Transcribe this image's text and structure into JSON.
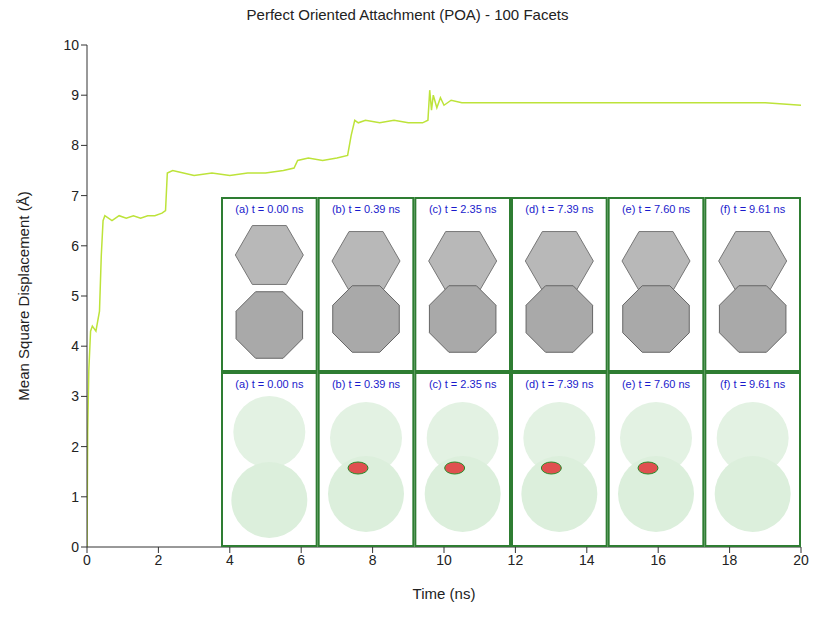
{
  "chart_data": {
    "type": "line",
    "title": "Perfect Oriented Attachment (POA) - 100 Facets",
    "x_label": "Time (ns)",
    "y_label": "Mean Square Displacement (Å)",
    "x": [
      0,
      0.02,
      0.05,
      0.1,
      0.15,
      0.25,
      0.3,
      0.35,
      0.4,
      0.45,
      0.5,
      0.7,
      0.9,
      1.1,
      1.3,
      1.5,
      1.7,
      1.9,
      2.1,
      2.2,
      2.25,
      2.4,
      2.7,
      3.0,
      3.5,
      4.0,
      4.5,
      5.0,
      5.5,
      5.8,
      5.9,
      6.2,
      6.6,
      7.0,
      7.3,
      7.4,
      7.5,
      7.6,
      7.8,
      8.2,
      8.6,
      9.0,
      9.4,
      9.55,
      9.6,
      9.65,
      9.7,
      9.8,
      9.9,
      10.0,
      10.2,
      10.5,
      11,
      12,
      13,
      14,
      15,
      16,
      17,
      18,
      19,
      20
    ],
    "values": [
      0,
      2.3,
      3.5,
      4.3,
      4.4,
      4.3,
      4.5,
      4.7,
      5.8,
      6.5,
      6.6,
      6.5,
      6.6,
      6.55,
      6.6,
      6.55,
      6.6,
      6.6,
      6.65,
      6.7,
      7.45,
      7.5,
      7.45,
      7.4,
      7.45,
      7.4,
      7.45,
      7.45,
      7.5,
      7.55,
      7.7,
      7.75,
      7.7,
      7.75,
      7.8,
      8.2,
      8.5,
      8.45,
      8.5,
      8.45,
      8.5,
      8.45,
      8.45,
      8.5,
      9.1,
      8.7,
      9.0,
      8.75,
      8.95,
      8.8,
      8.9,
      8.85,
      8.85,
      8.85,
      8.85,
      8.85,
      8.85,
      8.85,
      8.85,
      8.85,
      8.85,
      8.8
    ],
    "color": "#bde33a",
    "xlim": [
      0,
      20
    ],
    "ylim": [
      0,
      10
    ],
    "xticks": [
      0,
      2,
      4,
      6,
      8,
      10,
      12,
      14,
      16,
      18,
      20
    ],
    "yticks": [
      0,
      1,
      2,
      3,
      4,
      5,
      6,
      7,
      8,
      9,
      10
    ],
    "grid": false,
    "panel_rows": [
      [
        "(a) t = 0.00 ns",
        "(b) t = 0.39 ns",
        "(c) t = 2.35 ns",
        "(d) t = 7.39 ns",
        "(e) t = 7.60 ns",
        "(f) t = 9.61 ns"
      ],
      [
        "(a) t = 0.00 ns",
        "(b) t = 0.39 ns",
        "(c) t = 2.35 ns",
        "(d) t = 7.39 ns",
        "(e) t = 7.60 ns",
        "(f) t = 9.61 ns"
      ]
    ]
  }
}
